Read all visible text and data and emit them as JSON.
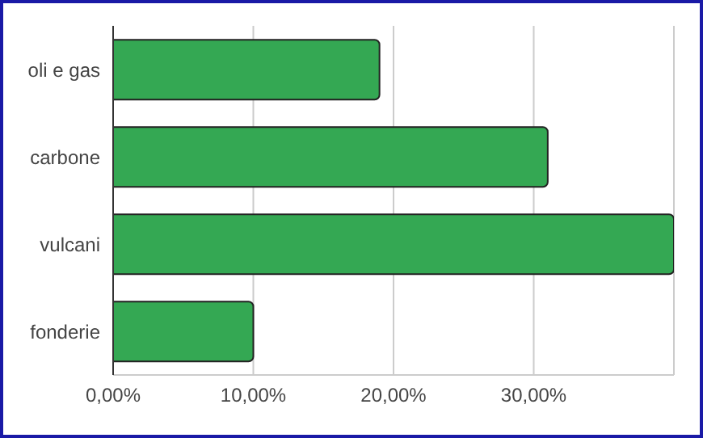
{
  "chart_data": {
    "type": "bar",
    "orientation": "horizontal",
    "categories": [
      "oli e gas",
      "carbone",
      "vulcani",
      "fonderie"
    ],
    "values": [
      19,
      31,
      40,
      10
    ],
    "color": "#34a853",
    "xlim": [
      0,
      40
    ],
    "xticks": [
      {
        "value": 0,
        "label": "0,00%"
      },
      {
        "value": 10,
        "label": "10,00%"
      },
      {
        "value": 20,
        "label": "20,00%"
      },
      {
        "value": 30,
        "label": "30,00%"
      },
      {
        "value": 40,
        "label": null
      }
    ],
    "grid": "x",
    "legend": false
  }
}
